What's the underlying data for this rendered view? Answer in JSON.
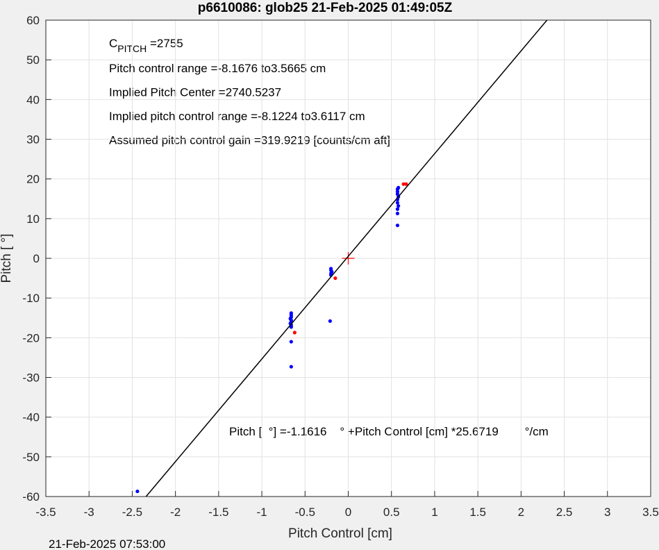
{
  "chart_data": {
    "type": "scatter",
    "title": "p6610086: glob25 21-Feb-2025 01:49:05Z",
    "x_label": "Pitch Control [cm]",
    "y_label": "Pitch [  °]",
    "footer": "21-Feb-2025 07:53:00",
    "annotations": {
      "c_pitch": {
        "main": "C",
        "sub": "PITCH",
        "value": " =2755"
      },
      "lines": [
        "Pitch control range =-8.1676 to3.5665 cm",
        "Implied Pitch Center =2740.5237",
        "Implied pitch control range =-8.1224 to3.6117 cm",
        "Assumed pitch control gain =319.9219 [counts/cm aft]"
      ],
      "equation": "Pitch [  °] =-1.1616    ° +Pitch Control [cm] *25.6719        °/cm"
    },
    "xlim": [
      -3.5,
      3.5
    ],
    "ylim": [
      -60,
      60
    ],
    "xticks": [
      -3.5,
      -3,
      -2.5,
      -2,
      -1.5,
      -1,
      -0.5,
      0,
      0.5,
      1,
      1.5,
      2,
      2.5,
      3,
      3.5
    ],
    "yticks": [
      -60,
      -50,
      -40,
      -30,
      -20,
      -10,
      0,
      10,
      20,
      30,
      40,
      50,
      60
    ],
    "grid": true,
    "series": [
      {
        "color": "#0000ff",
        "marker": "dot",
        "x": [
          -0.66,
          -0.66,
          -0.66,
          -0.67,
          -0.66,
          -0.66,
          -0.67,
          -0.66,
          -0.66,
          -0.66,
          -0.66,
          -0.2,
          -0.2,
          -0.19,
          -0.2,
          -0.2,
          -0.21,
          0.57,
          0.57,
          0.57,
          0.58,
          0.57,
          0.57,
          0.58,
          0.57,
          0.57,
          0.57,
          0.58,
          -2.44
        ],
        "values": [
          -13.8,
          -14.3,
          -14.8,
          -15.2,
          -15.6,
          -16,
          -16.4,
          -16.8,
          -17.3,
          -21,
          -27.3,
          -2.6,
          -3,
          -3.4,
          -3.8,
          -4.2,
          -15.8,
          8.3,
          11.3,
          12.4,
          13.2,
          14,
          14.8,
          15.5,
          16.2,
          16.8,
          17.4,
          17.8,
          -58.7
        ]
      },
      {
        "color": "#ff0000",
        "marker": "dot",
        "x": [
          -0.62,
          -0.15,
          0.64,
          0.67
        ],
        "values": [
          -18.7,
          -5,
          18.7,
          18.7
        ]
      },
      {
        "color": "#ff0000",
        "marker": "plus",
        "x": [
          0
        ],
        "values": [
          0
        ]
      },
      {
        "color": "#000000",
        "marker": "line",
        "x": [
          -2.34,
          2.3
        ],
        "values": [
          -60,
          60
        ]
      }
    ]
  }
}
